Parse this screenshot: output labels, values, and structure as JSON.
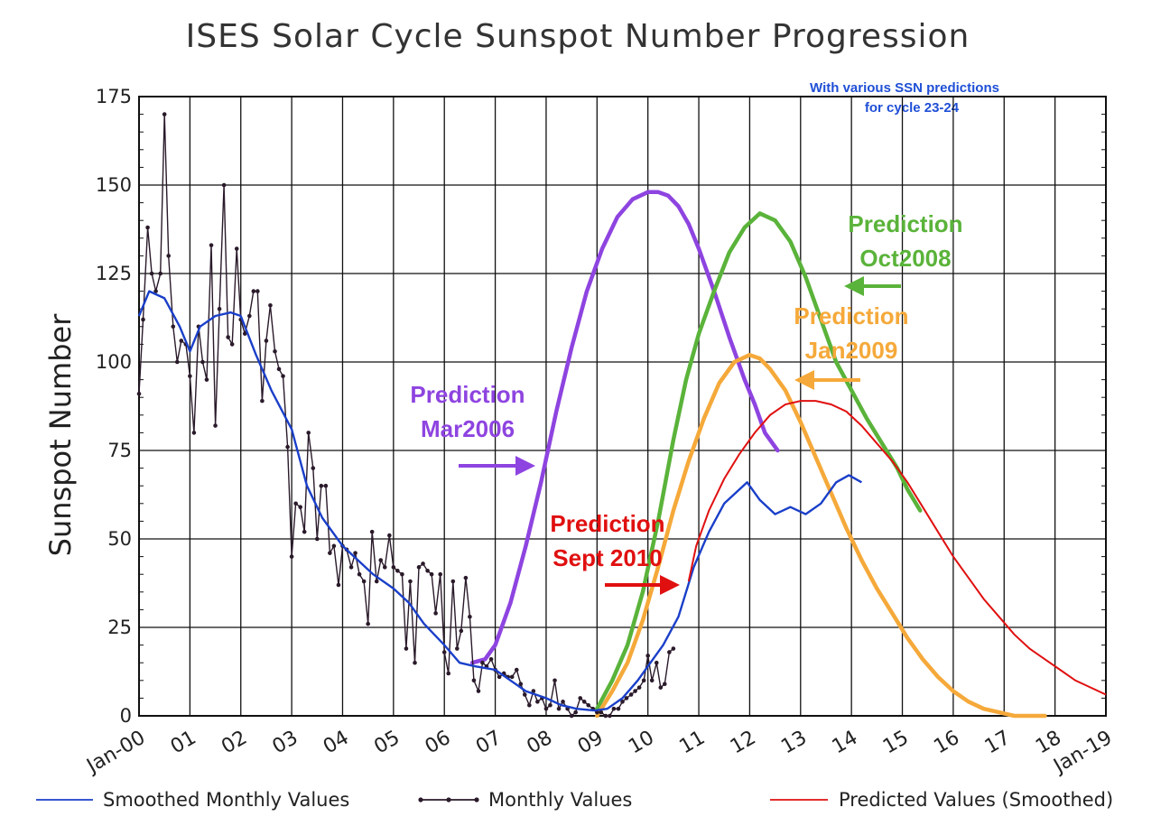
{
  "chart_data": {
    "type": "line",
    "title": "ISES Solar Cycle Sunspot Number Progression",
    "subtitle": [
      "With various SSN predictions",
      "for cycle 23-24"
    ],
    "ylabel": "Sunspot Number",
    "xlabel": "",
    "xlim": [
      2000,
      2019
    ],
    "ylim": [
      0,
      175
    ],
    "grid": true,
    "y_ticks": [
      0,
      25,
      50,
      75,
      100,
      125,
      150,
      175
    ],
    "x_tick_labels": [
      "Jan-00",
      "01",
      "02",
      "03",
      "04",
      "05",
      "06",
      "07",
      "08",
      "09",
      "10",
      "11",
      "12",
      "13",
      "14",
      "15",
      "16",
      "17",
      "18",
      "Jan-19"
    ],
    "legend": {
      "placement": "bottom",
      "entries": [
        {
          "name": "Smoothed Monthly Values",
          "color": "#1a3fc9",
          "marker": "none"
        },
        {
          "name": "Monthly Values",
          "color": "#2a1a2a",
          "marker": "dot"
        },
        {
          "name": "Predicted Values (Smoothed)",
          "color": "#e01010",
          "marker": "none"
        }
      ]
    },
    "series": [
      {
        "name": "Smoothed Monthly Values",
        "color": "#1a3fc9",
        "x": [
          2000.0,
          2000.2,
          2000.5,
          2000.8,
          2001.0,
          2001.2,
          2001.5,
          2001.8,
          2002.0,
          2002.3,
          2002.6,
          2003.0,
          2003.3,
          2003.6,
          2004.0,
          2004.3,
          2004.6,
          2005.0,
          2005.3,
          2005.6,
          2006.0,
          2006.3,
          2006.6,
          2007.0,
          2007.3,
          2007.6,
          2008.0,
          2008.3,
          2008.6,
          2008.95,
          2009.2,
          2009.5,
          2009.8,
          2010.0,
          2010.3,
          2010.6,
          2010.9,
          2011.2,
          2011.5,
          2011.8,
          2011.95,
          2012.2,
          2012.5,
          2012.8,
          2013.1,
          2013.4,
          2013.7,
          2013.95,
          2014.2
        ],
        "y": [
          113,
          120,
          118,
          110,
          103,
          110,
          113,
          114,
          113,
          102,
          92,
          81,
          65,
          56,
          48,
          44,
          40,
          36,
          32,
          26,
          20,
          15,
          14,
          13,
          10,
          7,
          5,
          3,
          2,
          1.5,
          2,
          5,
          10,
          14,
          20,
          28,
          42,
          52,
          60,
          64,
          66,
          61,
          57,
          59,
          57,
          60,
          66,
          68,
          66
        ]
      },
      {
        "name": "Monthly Values",
        "color": "#2a1a2a",
        "x": [
          2000.0,
          2000.08,
          2000.17,
          2000.25,
          2000.33,
          2000.42,
          2000.5,
          2000.58,
          2000.67,
          2000.75,
          2000.83,
          2000.92,
          2001.0,
          2001.08,
          2001.17,
          2001.25,
          2001.33,
          2001.42,
          2001.5,
          2001.58,
          2001.67,
          2001.75,
          2001.83,
          2001.92,
          2002.0,
          2002.08,
          2002.17,
          2002.25,
          2002.33,
          2002.42,
          2002.5,
          2002.58,
          2002.67,
          2002.75,
          2002.83,
          2002.92,
          2003.0,
          2003.08,
          2003.17,
          2003.25,
          2003.33,
          2003.42,
          2003.5,
          2003.58,
          2003.67,
          2003.75,
          2003.83,
          2003.92,
          2004.0,
          2004.08,
          2004.17,
          2004.25,
          2004.33,
          2004.42,
          2004.5,
          2004.58,
          2004.67,
          2004.75,
          2004.83,
          2004.92,
          2005.0,
          2005.08,
          2005.17,
          2005.25,
          2005.33,
          2005.42,
          2005.5,
          2005.58,
          2005.67,
          2005.75,
          2005.83,
          2005.92,
          2006.0,
          2006.08,
          2006.17,
          2006.25,
          2006.33,
          2006.42,
          2006.5,
          2006.58,
          2006.67,
          2006.75,
          2006.83,
          2006.92,
          2007.0,
          2007.08,
          2007.17,
          2007.25,
          2007.33,
          2007.42,
          2007.5,
          2007.58,
          2007.67,
          2007.75,
          2007.83,
          2007.92,
          2008.0,
          2008.08,
          2008.17,
          2008.25,
          2008.33,
          2008.42,
          2008.5,
          2008.58,
          2008.67,
          2008.75,
          2008.83,
          2008.92,
          2009.0,
          2009.08,
          2009.17,
          2009.25,
          2009.33,
          2009.42,
          2009.5,
          2009.58,
          2009.67,
          2009.75,
          2009.83,
          2009.92,
          2010.0,
          2010.08,
          2010.17,
          2010.25,
          2010.33,
          2010.42,
          2010.5
        ],
        "y": [
          91,
          112,
          138,
          125,
          120,
          125,
          170,
          130,
          110,
          100,
          106,
          105,
          96,
          80,
          110,
          100,
          95,
          133,
          82,
          115,
          150,
          107,
          105,
          132,
          112,
          108,
          113,
          120,
          120,
          89,
          106,
          116,
          103,
          98,
          96,
          76,
          45,
          60,
          59,
          52,
          80,
          70,
          50,
          65,
          65,
          46,
          48,
          37,
          48,
          47,
          42,
          46,
          40,
          38,
          26,
          52,
          38,
          44,
          42,
          51,
          42,
          41,
          40,
          19,
          38,
          15,
          42,
          43,
          41,
          40,
          29,
          40,
          18,
          12,
          38,
          19,
          24,
          39,
          28,
          10,
          7,
          15,
          14,
          16,
          13,
          11,
          12,
          11,
          11,
          13,
          9,
          6,
          3,
          7,
          4,
          5,
          2,
          3,
          10,
          2,
          4,
          2,
          0,
          1,
          5,
          4,
          3,
          2,
          1,
          1,
          0,
          0,
          2,
          2,
          4,
          5,
          6,
          7,
          8,
          10,
          17,
          10,
          15,
          8,
          9,
          18,
          19
        ]
      },
      {
        "name": "Predicted Values (Smoothed)",
        "color": "#e01010",
        "x": [
          2010.8,
          2010.95,
          2011.2,
          2011.5,
          2011.8,
          2012.1,
          2012.4,
          2012.7,
          2013.0,
          2013.3,
          2013.6,
          2013.9,
          2014.2,
          2014.5,
          2014.8,
          2015.1,
          2015.4,
          2015.7,
          2016.0,
          2016.3,
          2016.6,
          2016.9,
          2017.2,
          2017.5,
          2017.8,
          2018.1,
          2018.4,
          2018.7,
          2019.0
        ],
        "y": [
          38,
          48,
          58,
          67,
          74,
          80,
          85,
          88,
          89,
          89,
          88,
          86,
          82,
          77,
          72,
          66,
          59,
          52,
          45,
          39,
          33,
          28,
          23,
          19,
          16,
          13,
          10,
          8,
          6
        ]
      }
    ],
    "predictions": [
      {
        "label": [
          "Prediction",
          "Mar2006"
        ],
        "color": "#8e44e0",
        "x": [
          2006.55,
          2006.8,
          2007.0,
          2007.3,
          2007.6,
          2007.9,
          2008.2,
          2008.5,
          2008.8,
          2009.1,
          2009.4,
          2009.7,
          2010.0,
          2010.2,
          2010.4,
          2010.6,
          2010.8,
          2011.0,
          2011.3,
          2011.6,
          2011.9,
          2012.1,
          2012.3,
          2012.55
        ],
        "y": [
          15,
          16,
          20,
          32,
          48,
          66,
          86,
          104,
          120,
          132,
          141,
          146,
          148,
          148,
          147,
          144,
          139,
          132,
          120,
          107,
          95,
          88,
          80,
          75
        ]
      },
      {
        "label": [
          "Prediction",
          "Oct2008"
        ],
        "color": "#5ab33a",
        "x": [
          2009.0,
          2009.3,
          2009.6,
          2009.9,
          2010.2,
          2010.5,
          2010.75,
          2011.0,
          2011.3,
          2011.6,
          2011.9,
          2012.2,
          2012.5,
          2012.8,
          2013.1,
          2013.4,
          2013.7,
          2014.0,
          2014.3,
          2014.6,
          2014.9,
          2015.1,
          2015.35
        ],
        "y": [
          2,
          10,
          20,
          35,
          55,
          78,
          95,
          108,
          120,
          131,
          138,
          142,
          140,
          134,
          124,
          112,
          100,
          92,
          84,
          77,
          70,
          64,
          58
        ]
      },
      {
        "label": [
          "Prediction",
          "Jan2009"
        ],
        "color": "#f5a93a",
        "x": [
          2009.0,
          2009.3,
          2009.6,
          2009.9,
          2010.2,
          2010.5,
          2010.8,
          2011.1,
          2011.4,
          2011.7,
          2012.0,
          2012.2,
          2012.4,
          2012.7,
          2013.0,
          2013.3,
          2013.6,
          2013.9,
          2014.2,
          2014.5,
          2014.8,
          2015.1,
          2015.4,
          2015.7,
          2016.0,
          2016.3,
          2016.6,
          2016.9,
          2017.2,
          2017.5,
          2017.8
        ],
        "y": [
          0,
          7,
          15,
          27,
          42,
          58,
          72,
          84,
          94,
          100,
          102,
          101,
          98,
          92,
          83,
          73,
          63,
          53,
          44,
          36,
          29,
          22,
          16,
          11,
          7,
          4,
          2,
          1,
          0,
          0,
          0
        ]
      },
      {
        "label": [
          "Prediction",
          "Sept 2010"
        ],
        "color": "#e01010",
        "x": [],
        "y": []
      }
    ]
  }
}
